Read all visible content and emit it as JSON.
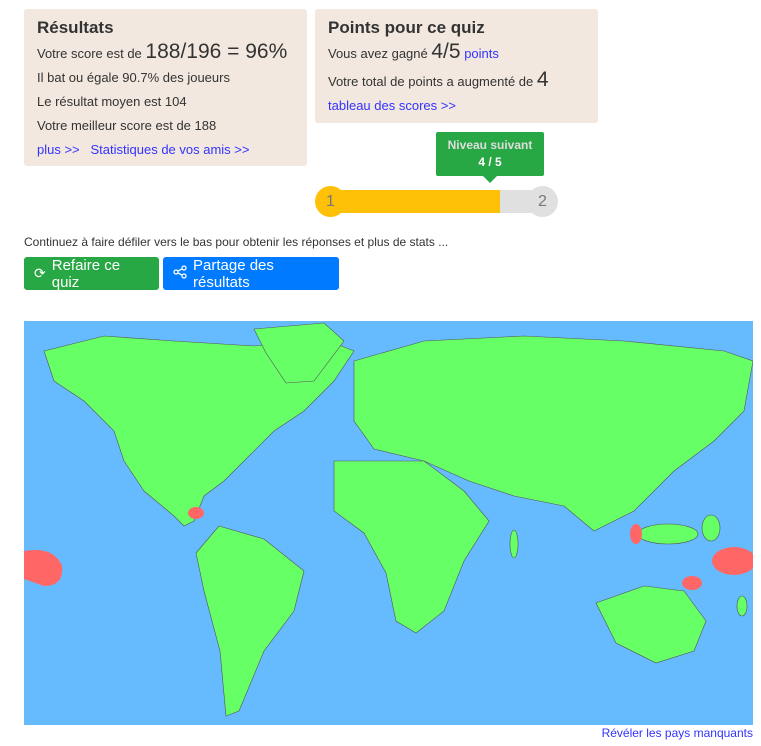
{
  "results": {
    "title": "Résultats",
    "score_prefix": "Votre score est de",
    "score": "188/196 = 96%",
    "beats": "Il bat ou égale 90.7% des joueurs",
    "average": "Le résultat moyen est 104",
    "best": "Votre meilleur score est de 188",
    "more_link": "plus >>",
    "friends_link": "Statistiques de vos amis >>"
  },
  "points": {
    "title": "Points pour ce quiz",
    "earned_prefix": "Vous avez gagné",
    "earned": "4/5",
    "earned_suffix": "points",
    "total_prefix": "Votre total de points a augmenté de",
    "total": "4",
    "leaderboard_link": "tableau des scores >>"
  },
  "level": {
    "tooltip_title": "Niveau suivant",
    "tooltip_value": "4 / 5",
    "start": "1",
    "end": "2",
    "progress_fraction": 0.8,
    "fill_color": "#ffc107"
  },
  "scroll_hint": "Continuez à faire défiler vers le bas pour obtenir les réponses et plus de stats ...",
  "buttons": {
    "retry": "Refaire ce quiz",
    "share": "Partage des résultats"
  },
  "map": {
    "ocean_color": "#66bbff",
    "correct_color": "#66ff66",
    "missing_color": "#ff6666"
  },
  "reveal_link": "Révéler les pays manquants"
}
